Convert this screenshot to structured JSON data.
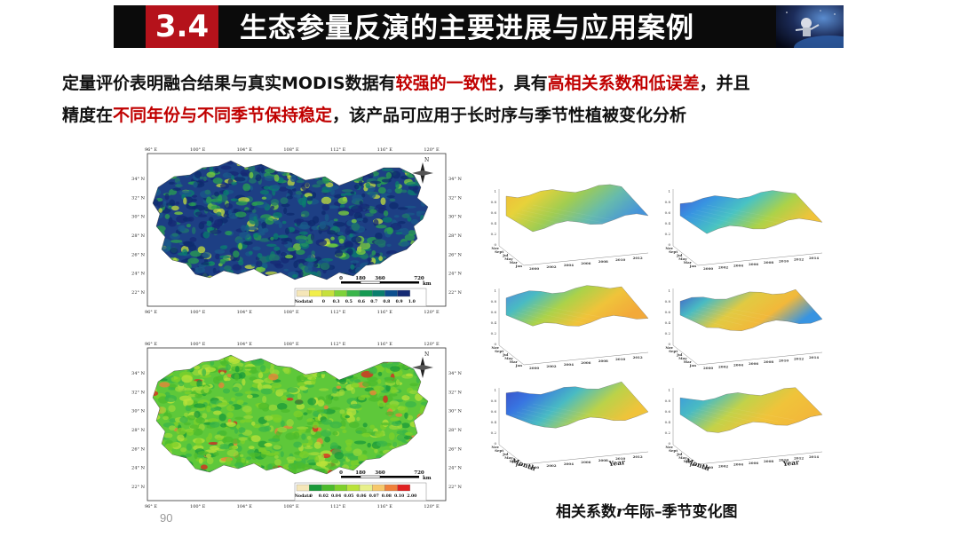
{
  "header": {
    "number": "3.4",
    "title": "生态参量反演的主要进展与应用案例"
  },
  "intro": {
    "line1": [
      {
        "t": "定量评价表明融合结果与真实MODIS数据有",
        "hl": false
      },
      {
        "t": "较强的一致性",
        "hl": true
      },
      {
        "t": "，具有",
        "hl": false
      },
      {
        "t": "高相关系数和低误差",
        "hl": true
      },
      {
        "t": "，并且",
        "hl": false
      }
    ],
    "line2": [
      {
        "t": "精度在",
        "hl": false
      },
      {
        "t": "不同年份与不同季节保持稳定",
        "hl": true
      },
      {
        "t": "，该产品可应用于长时序与季节性植被变化分析",
        "hl": false
      }
    ]
  },
  "map_top": {
    "lon_labels": [
      "96° E",
      "100° E",
      "104° E",
      "108° E",
      "112° E",
      "116° E",
      "120° E"
    ],
    "lat_labels": [
      "34° N",
      "32° N",
      "30° N",
      "28° N",
      "26° N",
      "24° N",
      "22° N"
    ],
    "north": "N",
    "scale_labels": [
      "0",
      "180",
      "360",
      "720"
    ],
    "scale_unit": "km",
    "legend_nodata": "Nodata",
    "legend_labels": [
      "-1",
      "0",
      "0.3",
      "0.5",
      "0.6",
      "0.7",
      "0.8",
      "0.9",
      "1.0"
    ],
    "legend_colors": [
      "#f5e6b8",
      "#f1ee4a",
      "#c6e03c",
      "#7ed23a",
      "#3ab54a",
      "#149a52",
      "#0a7f6e",
      "#0d4f8f",
      "#152a74"
    ]
  },
  "map_bottom": {
    "lon_labels": [
      "96° E",
      "100° E",
      "104° E",
      "108° E",
      "112° E",
      "116° E",
      "120° E"
    ],
    "lat_labels": [
      "34° N",
      "32° N",
      "30° N",
      "28° N",
      "26° N",
      "24° N",
      "22° N"
    ],
    "north": "N",
    "scale_labels": [
      "0",
      "180",
      "360",
      "720"
    ],
    "scale_unit": "km",
    "legend_nodata": "Nodata",
    "legend_labels": [
      "0",
      "0.02",
      "0.04",
      "0.05",
      "0.06",
      "0.07",
      "0.08",
      "0.10",
      "2.00"
    ],
    "legend_colors": [
      "#f5e6b8",
      "#1a9a3a",
      "#4cbb2c",
      "#7fd02a",
      "#b9e23a",
      "#e8f08a",
      "#f7c86a",
      "#f0803a",
      "#e02020"
    ]
  },
  "surfaces": {
    "z_ticks": [
      "1",
      "0.8",
      "0.6",
      "0.4",
      "0.2",
      "0"
    ],
    "month_ticks": [
      "Nov",
      "Sept",
      "Jul",
      "May",
      "Mar",
      "Jan"
    ],
    "year_ticks_left": [
      "2000",
      "2002",
      "2004",
      "2006",
      "2008",
      "2010",
      "2012"
    ],
    "year_ticks_right": [
      "2000",
      "2002",
      "2004",
      "2006",
      "2008",
      "2010",
      "2012",
      "2014"
    ],
    "month_label": "Month",
    "year_label": "Year"
  },
  "caption": {
    "pre": "相关系数",
    "var": "r",
    "post": "年际–季节变化图"
  },
  "page_number": "90",
  "colors": {
    "header_bg": "#0b0b0b",
    "number_bg": "#b5121b",
    "highlight": "#c00000"
  }
}
